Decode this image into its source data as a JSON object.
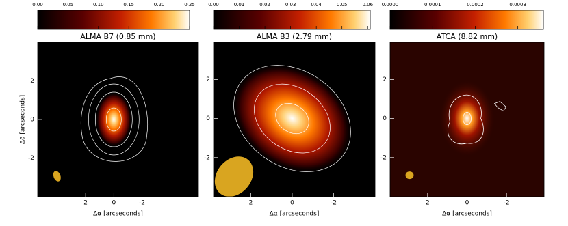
{
  "chart_data": [
    {
      "type": "image",
      "title": "ALMA B7 (0.85 mm)",
      "clim": [
        0,
        0.25
      ],
      "cticks": [
        {
          "value": 0,
          "label": "0.00"
        },
        {
          "value": 0.05,
          "label": "0.05"
        },
        {
          "value": 0.1,
          "label": "0.10"
        },
        {
          "value": 0.15,
          "label": "0.15"
        },
        {
          "value": 0.2,
          "label": "0.20"
        },
        {
          "value": 0.25,
          "label": "0.25"
        }
      ],
      "xlabel": "Δα [arcseconds]",
      "ylabel": "Δδ [arcseconds]",
      "xlim": [
        5.4,
        -6.0
      ],
      "ylim": [
        -4,
        4
      ],
      "xticks": [
        2,
        0,
        -2
      ],
      "yticks": [
        -2,
        0,
        2
      ]
    },
    {
      "type": "image",
      "title": "ALMA B3 (2.79 mm)",
      "clim": [
        0,
        0.061
      ],
      "cticks": [
        {
          "value": 0,
          "label": "0.00"
        },
        {
          "value": 0.01,
          "label": "0.01"
        },
        {
          "value": 0.02,
          "label": "0.02"
        },
        {
          "value": 0.03,
          "label": "0.03"
        },
        {
          "value": 0.04,
          "label": "0.04"
        },
        {
          "value": 0.05,
          "label": "0.05"
        },
        {
          "value": 0.06,
          "label": "0.06"
        }
      ],
      "xlabel": "Δα [arcseconds]",
      "xlim": [
        3.8,
        -4.0
      ],
      "ylim": [
        -4,
        3.9
      ],
      "xticks": [
        2,
        0,
        -2
      ],
      "yticks": [
        -2,
        0,
        2
      ]
    },
    {
      "type": "image",
      "title": "ATCA (8.82 mm)",
      "clim": [
        0,
        0.00036
      ],
      "cticks": [
        {
          "value": 0,
          "label": "0.0000"
        },
        {
          "value": 0.0001,
          "label": "0.0001"
        },
        {
          "value": 0.0002,
          "label": "0.0002"
        },
        {
          "value": 0.0003,
          "label": "0.0003"
        }
      ],
      "xlabel": "Δα [arcseconds]",
      "xlim": [
        3.9,
        -3.9
      ],
      "ylim": [
        -4,
        3.9
      ],
      "xticks": [
        2,
        0,
        -2
      ],
      "yticks": [
        -2,
        0,
        2
      ]
    }
  ]
}
